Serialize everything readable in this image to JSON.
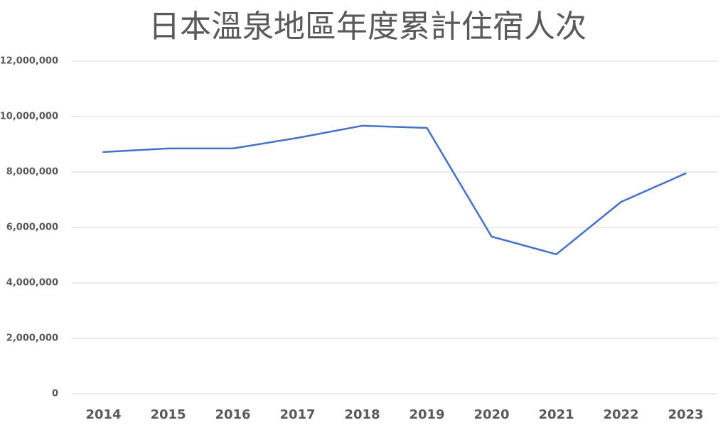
{
  "chart_data": {
    "type": "line",
    "title": "日本溫泉地區年度累計住宿人次",
    "categories": [
      "2014",
      "2015",
      "2016",
      "2017",
      "2018",
      "2019",
      "2020",
      "2021",
      "2022",
      "2023"
    ],
    "values": [
      8720000,
      8850000,
      8850000,
      9230000,
      9670000,
      9590000,
      5670000,
      5030000,
      6920000,
      7950000
    ],
    "color": "#4472c4",
    "ylim": [
      0,
      12000000
    ],
    "yticks": [
      0,
      {
        "value": 2000000,
        "label": "2,000,000"
      },
      {
        "value": 4000000,
        "label": "4,000,000"
      },
      {
        "value": 6000000,
        "label": "6,000,000"
      },
      {
        "value": 8000000,
        "label": "8,000,000"
      },
      {
        "value": 10000000,
        "label": "10,000,000"
      },
      {
        "value": 12000000,
        "label": "12,000,000"
      }
    ],
    "grid": true
  }
}
